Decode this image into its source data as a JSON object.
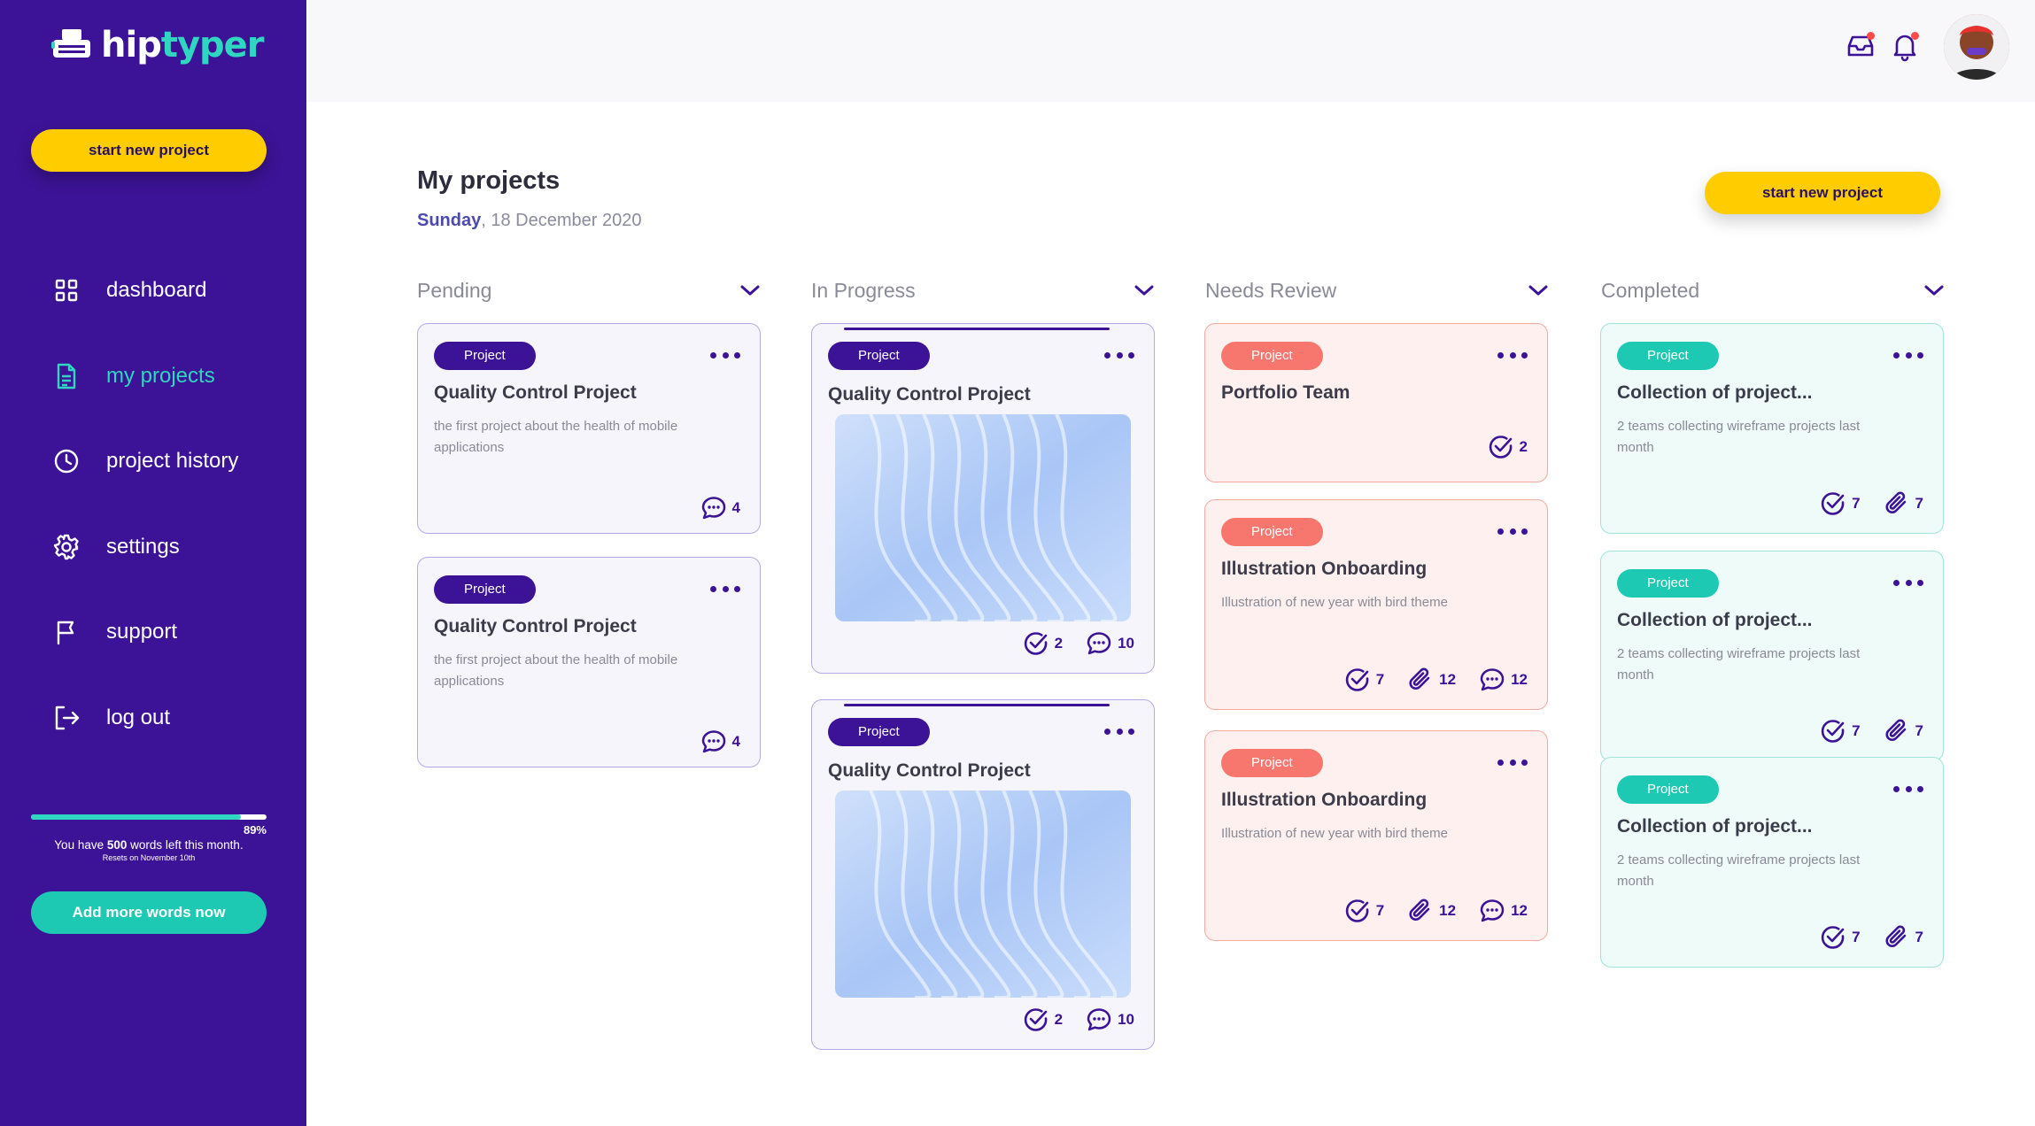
{
  "brand": {
    "name_part1": "hip",
    "name_part2": "typer"
  },
  "sidebar": {
    "cta_label": "start new project",
    "items": [
      {
        "label": "dashboard",
        "icon": "grid-icon"
      },
      {
        "label": "my projects",
        "icon": "document-icon",
        "active": true
      },
      {
        "label": "project history",
        "icon": "clock-icon"
      },
      {
        "label": "settings",
        "icon": "gear-icon"
      },
      {
        "label": "support",
        "icon": "flag-icon"
      },
      {
        "label": "log out",
        "icon": "logout-icon"
      }
    ],
    "usage": {
      "progress": 0.89,
      "percent_label": "89%",
      "msg_prefix": "You have ",
      "words": "500",
      "msg_suffix": " words left this month.",
      "reset": "Resets on November 10th"
    },
    "add_words_label": "Add more words now"
  },
  "header": {
    "inbox_icon": "inbox-icon",
    "bell_icon": "bell-icon",
    "has_unread": true
  },
  "main": {
    "title": "My projects",
    "date_day": "Sunday",
    "date_rest": ", 18 December 2020",
    "cta_label": "start new project"
  },
  "columns": [
    {
      "title": "Pending",
      "cards": [
        {
          "badge": "Project",
          "title": "Quality Control Project",
          "desc": "the first project about the health of mobile applications",
          "comments": "4"
        },
        {
          "badge": "Project",
          "title": "Quality Control Project",
          "desc": "the first project about the health of mobile applications",
          "comments": "4"
        }
      ]
    },
    {
      "title": "In Progress",
      "cards": [
        {
          "badge": "Project",
          "title": "Quality Control Project",
          "tasks": "2",
          "comments": "10"
        },
        {
          "badge": "Project",
          "title": "Quality Control Project",
          "tasks": "2",
          "comments": "10"
        }
      ]
    },
    {
      "title": "Needs Review",
      "cards": [
        {
          "badge": "Project",
          "title": "Portfolio Team",
          "tasks": "2"
        },
        {
          "badge": "Project",
          "title": "Illustration Onboarding",
          "desc": "Illustration of new year with bird theme",
          "tasks": "7",
          "attachments": "12",
          "comments": "12"
        },
        {
          "badge": "Project",
          "title": "Illustration Onboarding",
          "desc": "Illustration of new year with bird theme",
          "tasks": "7",
          "attachments": "12",
          "comments": "12"
        }
      ]
    },
    {
      "title": "Completed",
      "cards": [
        {
          "badge": "Project",
          "title": "Collection of project...",
          "desc": "2 teams collecting wireframe projects last month",
          "tasks": "7",
          "attachments": "7"
        },
        {
          "badge": "Project",
          "title": "Collection of project...",
          "desc": "2 teams collecting wireframe projects last month",
          "tasks": "7",
          "attachments": "7"
        },
        {
          "badge": "Project",
          "title": "Collection of project...",
          "desc": "2 teams collecting wireframe projects last month",
          "tasks": "7",
          "attachments": "7"
        }
      ]
    }
  ],
  "colors": {
    "sidebar": "#3c1396",
    "accent_yellow": "#ffcc00",
    "accent_teal": "#2fd6c0",
    "pink": "#f7776e"
  }
}
